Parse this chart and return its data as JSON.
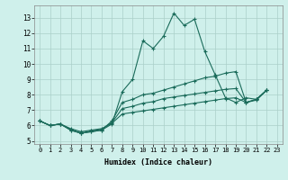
{
  "xlabel": "Humidex (Indice chaleur)",
  "background_color": "#cff0eb",
  "grid_color": "#aacfc9",
  "line_color": "#1a6b5a",
  "xlim": [
    -0.5,
    23.5
  ],
  "ylim": [
    4.8,
    13.8
  ],
  "xticks": [
    0,
    1,
    2,
    3,
    4,
    5,
    6,
    7,
    8,
    9,
    10,
    11,
    12,
    13,
    14,
    15,
    16,
    17,
    18,
    19,
    20,
    21,
    22,
    23
  ],
  "yticks": [
    5,
    6,
    7,
    8,
    9,
    10,
    11,
    12,
    13
  ],
  "series": [
    [
      6.3,
      6.0,
      6.1,
      5.7,
      5.5,
      5.6,
      5.7,
      6.1,
      8.2,
      9.0,
      11.5,
      11.0,
      11.8,
      13.3,
      12.5,
      12.9,
      10.8,
      9.3,
      7.8,
      7.5,
      7.8,
      7.7,
      8.3
    ],
    [
      6.3,
      6.0,
      6.1,
      5.7,
      5.5,
      5.6,
      5.7,
      6.3,
      7.5,
      7.7,
      8.0,
      8.1,
      8.3,
      8.5,
      8.7,
      8.9,
      9.1,
      9.2,
      9.4,
      9.5,
      7.5,
      7.7,
      8.3
    ],
    [
      6.3,
      6.0,
      6.1,
      5.75,
      5.5,
      5.65,
      5.75,
      6.2,
      7.1,
      7.25,
      7.45,
      7.55,
      7.75,
      7.85,
      7.95,
      8.05,
      8.15,
      8.25,
      8.35,
      8.4,
      7.5,
      7.7,
      8.3
    ],
    [
      6.3,
      6.0,
      6.1,
      5.8,
      5.6,
      5.7,
      5.8,
      6.15,
      6.75,
      6.85,
      6.95,
      7.05,
      7.15,
      7.25,
      7.35,
      7.45,
      7.55,
      7.65,
      7.75,
      7.8,
      7.5,
      7.65,
      8.3
    ]
  ]
}
